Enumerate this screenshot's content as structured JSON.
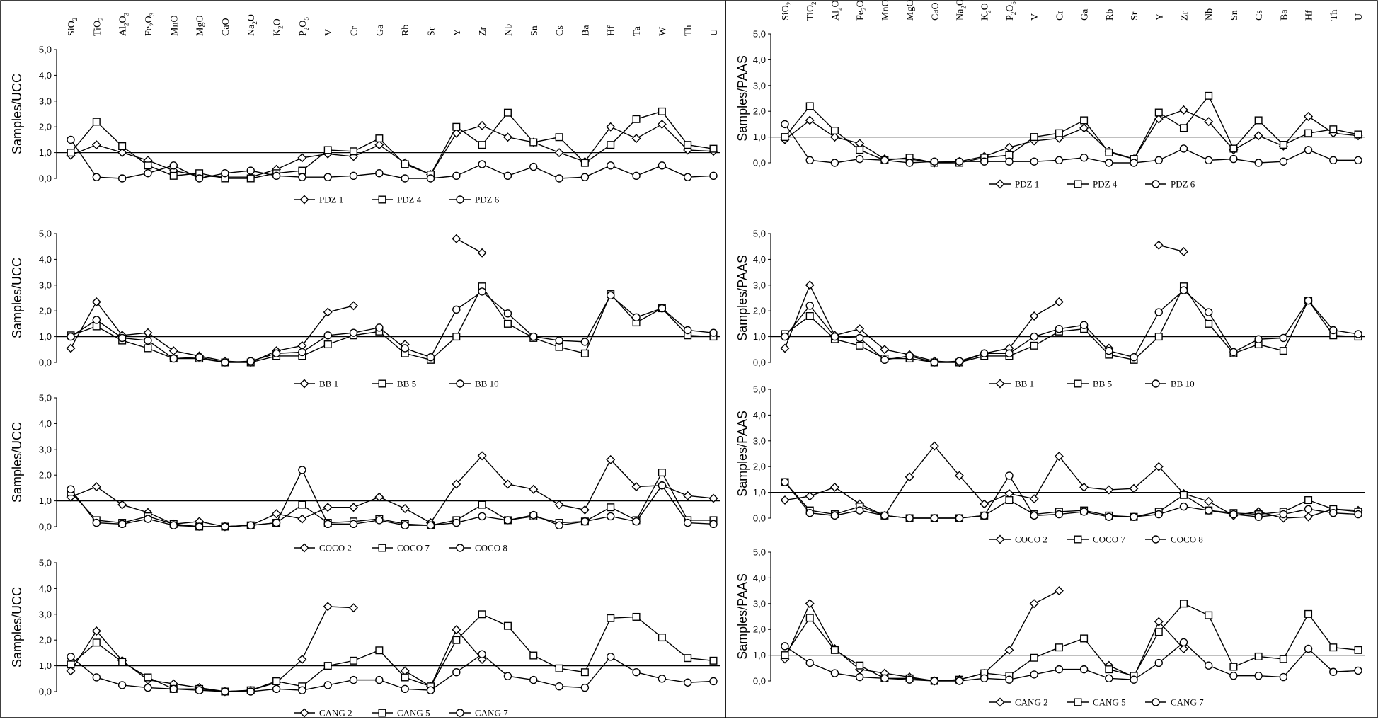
{
  "figure": {
    "elements": [
      {
        "base": "SiO",
        "sub": "2"
      },
      {
        "base": "TiO",
        "sub": "2"
      },
      {
        "base": "Al",
        "sub": "2",
        "base2": "O",
        "sub2": "3"
      },
      {
        "base": "Fe",
        "sub": "2",
        "base2": "O",
        "sub2": "3"
      },
      {
        "base": "MnO"
      },
      {
        "base": "MgO"
      },
      {
        "base": "CaO"
      },
      {
        "base": "Na",
        "sub": "2",
        "base2": "O"
      },
      {
        "base": "K",
        "sub": "2",
        "base2": "O"
      },
      {
        "base": "P",
        "sub": "2",
        "base2": "O",
        "sub2": "5"
      },
      {
        "base": "V"
      },
      {
        "base": "Cr"
      },
      {
        "base": "Ga"
      },
      {
        "base": "Rb"
      },
      {
        "base": "Sr"
      },
      {
        "base": "Y"
      },
      {
        "base": "Zr"
      },
      {
        "base": "Nb"
      },
      {
        "base": "Sn"
      },
      {
        "base": "Cs"
      },
      {
        "base": "Ba"
      },
      {
        "base": "Hf"
      },
      {
        "base": "Ta"
      },
      {
        "base": "W"
      },
      {
        "base": "Th"
      },
      {
        "base": "U"
      }
    ],
    "y_ticks": [
      "0,0",
      "1,0",
      "2,0",
      "3,0",
      "4,0",
      "5,0"
    ]
  },
  "chart_data": [
    {
      "type": "line",
      "panel": "left",
      "ylabel": "Samples/UCC",
      "ylim": [
        0,
        5
      ],
      "reference_line": 1,
      "categories": [
        "SiO2",
        "TiO2",
        "Al2O3",
        "Fe2O3",
        "MnO",
        "MgO",
        "CaO",
        "Na2O",
        "K2O",
        "P2O5",
        "V",
        "Cr",
        "Ga",
        "Rb",
        "Sr",
        "Y",
        "Zr",
        "Nb",
        "Sn",
        "Cs",
        "Ba",
        "Hf",
        "Ta",
        "W",
        "Th",
        "U"
      ],
      "series": [
        {
          "name": "PDZ 1",
          "marker": "diamond",
          "values": [
            0.9,
            1.3,
            1.0,
            0.7,
            0.3,
            0.1,
            0.05,
            0.05,
            0.35,
            0.8,
            0.95,
            0.85,
            1.3,
            0.6,
            0.15,
            1.75,
            2.05,
            1.6,
            1.4,
            1.0,
            0.65,
            2.0,
            1.55,
            2.1,
            1.1,
            1.05
          ]
        },
        {
          "name": "PDZ 4",
          "marker": "square",
          "values": [
            1.0,
            2.2,
            1.25,
            0.5,
            0.1,
            0.2,
            0.0,
            0.0,
            0.2,
            0.3,
            1.1,
            1.05,
            1.55,
            0.55,
            0.15,
            2.0,
            1.3,
            2.55,
            1.4,
            1.6,
            0.6,
            1.3,
            2.3,
            2.6,
            1.3,
            1.15
          ]
        },
        {
          "name": "PDZ 6",
          "marker": "circle",
          "values": [
            1.5,
            0.05,
            0.0,
            0.2,
            0.5,
            0.0,
            0.2,
            0.3,
            0.1,
            0.05,
            0.05,
            0.1,
            0.2,
            0.0,
            0.0,
            0.1,
            0.55,
            0.1,
            0.45,
            0.0,
            0.05,
            0.5,
            0.1,
            0.5,
            0.05,
            0.1
          ]
        }
      ]
    },
    {
      "type": "line",
      "panel": "left",
      "ylabel": "Samples/UCC",
      "ylim": [
        0,
        5
      ],
      "reference_line": 1,
      "categories": [
        "SiO2",
        "TiO2",
        "Al2O3",
        "Fe2O3",
        "MnO",
        "MgO",
        "CaO",
        "Na2O",
        "K2O",
        "P2O5",
        "V",
        "Cr",
        "Ga",
        "Rb",
        "Sr",
        "Y",
        "Zr",
        "Nb",
        "Sn",
        "Cs",
        "Ba",
        "Hf",
        "Ta",
        "W",
        "Th",
        "U"
      ],
      "series": [
        {
          "name": "BB 1",
          "marker": "diamond",
          "values": [
            0.55,
            2.35,
            1.05,
            1.15,
            0.45,
            0.25,
            0.05,
            0.0,
            0.45,
            0.65,
            1.95,
            2.2,
            null,
            0.7,
            null,
            4.8,
            4.25,
            null,
            null,
            null,
            null,
            null,
            null,
            null,
            null,
            null
          ]
        },
        {
          "name": "BB 5",
          "marker": "square",
          "values": [
            1.05,
            1.4,
            0.85,
            0.55,
            0.15,
            0.15,
            0.0,
            0.0,
            0.25,
            0.25,
            0.7,
            1.05,
            1.2,
            0.35,
            0.1,
            1.0,
            2.95,
            1.5,
            0.95,
            0.6,
            0.35,
            2.65,
            1.55,
            2.1,
            1.05,
            1.0
          ]
        },
        {
          "name": "BB 10",
          "marker": "circle",
          "values": [
            1.0,
            1.65,
            0.95,
            0.85,
            0.15,
            0.2,
            0.0,
            0.05,
            0.35,
            0.4,
            1.05,
            1.15,
            1.35,
            0.55,
            0.2,
            2.05,
            2.75,
            1.9,
            1.0,
            0.85,
            0.8,
            2.6,
            1.75,
            2.1,
            1.25,
            1.15
          ]
        }
      ]
    },
    {
      "type": "line",
      "panel": "left",
      "ylabel": "Samples/UCC",
      "ylim": [
        0,
        5
      ],
      "reference_line": 1,
      "categories": [
        "SiO2",
        "TiO2",
        "Al2O3",
        "Fe2O3",
        "MnO",
        "MgO",
        "CaO",
        "Na2O",
        "K2O",
        "P2O5",
        "V",
        "Cr",
        "Ga",
        "Rb",
        "Sr",
        "Y",
        "Zr",
        "Nb",
        "Sn",
        "Cs",
        "Ba",
        "Hf",
        "Ta",
        "W",
        "Th",
        "U"
      ],
      "series": [
        {
          "name": "COCO 2",
          "marker": "diamond",
          "values": [
            1.15,
            1.55,
            0.85,
            0.55,
            0.1,
            0.2,
            0.0,
            0.05,
            0.5,
            0.3,
            0.75,
            0.75,
            1.15,
            0.7,
            0.15,
            1.65,
            2.75,
            1.65,
            1.45,
            0.85,
            0.65,
            2.6,
            1.55,
            1.6,
            1.2,
            1.1
          ]
        },
        {
          "name": "COCO 7",
          "marker": "square",
          "values": [
            1.35,
            0.25,
            0.15,
            0.4,
            0.1,
            0.0,
            0.0,
            0.05,
            0.15,
            0.85,
            0.15,
            0.2,
            0.3,
            0.1,
            0.05,
            0.25,
            0.85,
            0.25,
            0.4,
            0.15,
            0.2,
            0.75,
            0.25,
            2.1,
            0.25,
            0.25
          ]
        },
        {
          "name": "COCO 8",
          "marker": "circle",
          "values": [
            1.45,
            0.15,
            0.1,
            0.3,
            0.05,
            0.0,
            0.0,
            0.05,
            0.15,
            2.2,
            0.1,
            0.1,
            0.25,
            0.05,
            0.05,
            0.15,
            0.4,
            0.25,
            0.45,
            0.05,
            0.2,
            0.4,
            0.2,
            1.6,
            0.15,
            0.1
          ]
        }
      ]
    },
    {
      "type": "line",
      "panel": "left",
      "ylabel": "Samples/UCC",
      "ylim": [
        0,
        5
      ],
      "reference_line": 1,
      "categories": [
        "SiO2",
        "TiO2",
        "Al2O3",
        "Fe2O3",
        "MnO",
        "MgO",
        "CaO",
        "Na2O",
        "K2O",
        "P2O5",
        "V",
        "Cr",
        "Ga",
        "Rb",
        "Sr",
        "Y",
        "Zr",
        "Nb",
        "Sn",
        "Cs",
        "Ba",
        "Hf",
        "Ta",
        "W",
        "Th",
        "U"
      ],
      "series": [
        {
          "name": "CANG 2",
          "marker": "diamond",
          "values": [
            0.8,
            2.35,
            1.2,
            0.45,
            0.3,
            0.15,
            0.0,
            0.05,
            0.35,
            1.25,
            3.3,
            3.25,
            null,
            0.8,
            0.2,
            2.4,
            1.25,
            null,
            null,
            null,
            null,
            null,
            null,
            null,
            null,
            null
          ]
        },
        {
          "name": "CANG 5",
          "marker": "square",
          "values": [
            1.05,
            1.9,
            1.15,
            0.55,
            0.1,
            0.1,
            0.0,
            0.05,
            0.4,
            0.2,
            1.0,
            1.2,
            1.6,
            0.55,
            0.2,
            2.0,
            3.0,
            2.55,
            1.4,
            0.9,
            0.75,
            2.85,
            2.9,
            2.1,
            1.3,
            1.2
          ]
        },
        {
          "name": "CANG 7",
          "marker": "circle",
          "values": [
            1.35,
            0.55,
            0.25,
            0.15,
            0.1,
            0.05,
            0.0,
            0.0,
            0.1,
            0.05,
            0.25,
            0.45,
            0.45,
            0.1,
            0.05,
            0.75,
            1.45,
            0.6,
            0.45,
            0.2,
            0.15,
            1.35,
            0.75,
            0.5,
            0.35,
            0.4
          ]
        }
      ]
    },
    {
      "type": "line",
      "panel": "right",
      "ylabel": "Samples/PAAS",
      "ylim": [
        0,
        5
      ],
      "reference_line": 1,
      "categories": [
        "SiO2",
        "TiO2",
        "Al2O3",
        "Fe2O3",
        "MnO",
        "MgO",
        "CaO",
        "Na2O",
        "K2O",
        "P2O5",
        "V",
        "Cr",
        "Ga",
        "Rb",
        "Sr",
        "Y",
        "Zr",
        "Nb",
        "Sn",
        "Cs",
        "Ba",
        "Hf",
        "Th",
        "U"
      ],
      "series": [
        {
          "name": "PDZ 1",
          "marker": "diamond",
          "values": [
            0.9,
            1.65,
            1.0,
            0.75,
            0.15,
            0.15,
            0.0,
            0.05,
            0.25,
            0.6,
            0.85,
            0.95,
            1.35,
            0.45,
            0.15,
            1.7,
            2.05,
            1.6,
            0.5,
            1.05,
            0.65,
            1.8,
            1.15,
            1.05
          ]
        },
        {
          "name": "PDZ 4",
          "marker": "square",
          "values": [
            1.0,
            2.2,
            1.25,
            0.5,
            0.1,
            0.2,
            0.0,
            0.0,
            0.2,
            0.3,
            1.0,
            1.15,
            1.65,
            0.4,
            0.15,
            1.95,
            1.35,
            2.6,
            0.55,
            1.65,
            0.7,
            1.15,
            1.3,
            1.1
          ]
        },
        {
          "name": "PDZ 6",
          "marker": "circle",
          "values": [
            1.5,
            0.1,
            0.0,
            0.15,
            0.1,
            0.0,
            0.05,
            0.05,
            0.05,
            0.05,
            0.05,
            0.1,
            0.2,
            0.0,
            0.0,
            0.1,
            0.55,
            0.1,
            0.15,
            0.0,
            0.05,
            0.5,
            0.1,
            0.1
          ]
        }
      ]
    },
    {
      "type": "line",
      "panel": "right",
      "ylabel": "Samples/PAAS",
      "ylim": [
        0,
        5
      ],
      "reference_line": 1,
      "categories": [
        "SiO2",
        "TiO2",
        "Al2O3",
        "Fe2O3",
        "MnO",
        "MgO",
        "CaO",
        "Na2O",
        "K2O",
        "P2O5",
        "V",
        "Cr",
        "Ga",
        "Rb",
        "Sr",
        "Y",
        "Zr",
        "Nb",
        "Sn",
        "Cs",
        "Ba",
        "Hf",
        "Th",
        "U"
      ],
      "series": [
        {
          "name": "BB 1",
          "marker": "diamond",
          "values": [
            0.55,
            3.0,
            1.05,
            1.3,
            0.5,
            0.3,
            0.05,
            0.0,
            0.35,
            0.55,
            1.8,
            2.35,
            null,
            0.55,
            null,
            4.55,
            4.3,
            null,
            null,
            null,
            null,
            null,
            null,
            null
          ]
        },
        {
          "name": "BB 5",
          "marker": "square",
          "values": [
            1.1,
            1.8,
            0.9,
            0.65,
            0.15,
            0.15,
            0.0,
            0.0,
            0.25,
            0.25,
            0.65,
            1.2,
            1.3,
            0.3,
            0.1,
            1.0,
            2.95,
            1.5,
            0.35,
            0.7,
            0.45,
            2.4,
            1.05,
            1.0
          ]
        },
        {
          "name": "BB 10",
          "marker": "circle",
          "values": [
            1.0,
            2.2,
            1.0,
            0.95,
            0.1,
            0.25,
            0.0,
            0.05,
            0.35,
            0.35,
            1.0,
            1.3,
            1.45,
            0.45,
            0.2,
            1.95,
            2.8,
            1.95,
            0.4,
            0.9,
            0.95,
            2.4,
            1.25,
            1.1
          ]
        }
      ]
    },
    {
      "type": "line",
      "panel": "right",
      "ylabel": "Samples/PAAS",
      "ylim": [
        0,
        5
      ],
      "reference_line": 1,
      "categories": [
        "SiO2",
        "TiO2",
        "Al2O3",
        "Fe2O3",
        "MnO",
        "MgO",
        "CaO",
        "Na2O",
        "K2O",
        "P2O5",
        "V",
        "Cr",
        "Ga",
        "Rb",
        "Sr",
        "Y",
        "Zr",
        "Nb",
        "Sn",
        "Cs",
        "Ba",
        "Hf",
        "Th",
        "U"
      ],
      "series": [
        {
          "name": "COCO 2",
          "marker": "diamond",
          "values": [
            0.7,
            0.85,
            1.2,
            0.55,
            0.1,
            1.6,
            2.8,
            1.65,
            0.55,
            0.95,
            0.75,
            2.4,
            1.2,
            1.1,
            1.15,
            2.0,
            0.95,
            0.65,
            0.1,
            0.25,
            0.0,
            0.05,
            0.35,
            0.3
          ]
        },
        {
          "name": "COCO 7",
          "marker": "square",
          "values": [
            1.4,
            0.3,
            0.15,
            0.45,
            0.1,
            0.0,
            0.0,
            0.0,
            0.1,
            0.7,
            0.15,
            0.25,
            0.3,
            0.1,
            0.05,
            0.25,
            0.9,
            0.3,
            0.2,
            0.15,
            0.25,
            0.7,
            0.35,
            0.25
          ]
        },
        {
          "name": "COCO 8",
          "marker": "circle",
          "values": [
            1.4,
            0.2,
            0.1,
            0.3,
            0.1,
            0.0,
            0.0,
            0.0,
            0.1,
            1.65,
            0.1,
            0.15,
            0.25,
            0.05,
            0.05,
            0.15,
            0.45,
            0.3,
            0.15,
            0.05,
            0.15,
            0.35,
            0.2,
            0.15
          ]
        }
      ]
    },
    {
      "type": "line",
      "panel": "right",
      "ylabel": "Samples/PAAS",
      "ylim": [
        0,
        5
      ],
      "reference_line": 1,
      "categories": [
        "SiO2",
        "TiO2",
        "Al2O3",
        "Fe2O3",
        "MnO",
        "MgO",
        "CaO",
        "Na2O",
        "K2O",
        "P2O5",
        "V",
        "Cr",
        "Ga",
        "Rb",
        "Sr",
        "Y",
        "Zr",
        "Nb",
        "Sn",
        "Cs",
        "Ba",
        "Hf",
        "Th",
        "U"
      ],
      "series": [
        {
          "name": "CANG 2",
          "marker": "diamond",
          "values": [
            0.85,
            3.0,
            1.25,
            0.45,
            0.3,
            0.15,
            0.0,
            0.05,
            0.3,
            1.2,
            3.0,
            3.5,
            null,
            0.6,
            0.15,
            2.3,
            1.25,
            null,
            null,
            null,
            null,
            null,
            null,
            null
          ]
        },
        {
          "name": "CANG 5",
          "marker": "square",
          "values": [
            1.0,
            2.45,
            1.2,
            0.6,
            0.1,
            0.1,
            0.0,
            0.05,
            0.3,
            0.2,
            0.9,
            1.3,
            1.65,
            0.45,
            0.2,
            1.9,
            3.0,
            2.55,
            0.55,
            0.95,
            0.85,
            2.6,
            1.3,
            1.2
          ]
        },
        {
          "name": "CANG 7",
          "marker": "circle",
          "values": [
            1.35,
            0.7,
            0.3,
            0.15,
            0.1,
            0.05,
            0.0,
            0.0,
            0.1,
            0.05,
            0.25,
            0.45,
            0.45,
            0.1,
            0.05,
            0.7,
            1.5,
            0.6,
            0.2,
            0.2,
            0.15,
            1.25,
            0.35,
            0.4
          ]
        }
      ]
    }
  ]
}
